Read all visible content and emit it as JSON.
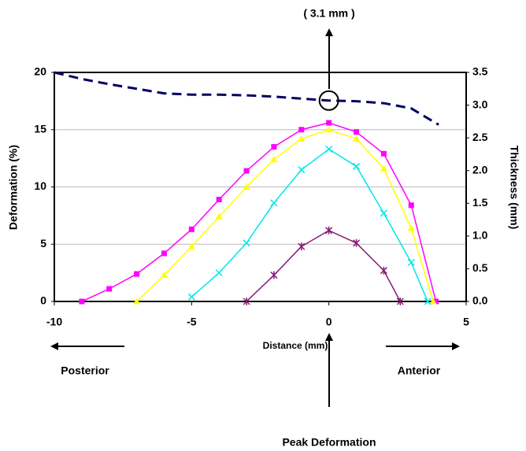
{
  "chart_data": {
    "type": "line",
    "annotations": [
      "( 3.1 mm )",
      "Posterior",
      "Anterior",
      "Peak Deformation"
    ],
    "xlabel": "Distance (mm)",
    "ylabel": "Deformation (%)",
    "y2label": "Thickness (mm)",
    "xlim": [
      -10,
      5
    ],
    "xticks": [
      -10,
      -5,
      0,
      5
    ],
    "ylim": [
      0,
      20
    ],
    "yticks": [
      0,
      5,
      10,
      15,
      20
    ],
    "y2lim": [
      0,
      3.5
    ],
    "y2ticks": [
      {
        "value": 0,
        "label": "0.0"
      },
      0.5,
      {
        "value": 1,
        "label": "1.0"
      },
      1.5,
      {
        "value": 2,
        "label": "2.0"
      },
      2.5,
      {
        "value": 3,
        "label": "3.0"
      },
      3.5
    ],
    "grid": true,
    "series": [
      {
        "color": "#ff00ff",
        "marker": "square",
        "x": [
          -9,
          -8,
          -7,
          -6,
          -5,
          -4,
          -3,
          -2,
          -1,
          0,
          1,
          2,
          3,
          3.9
        ],
        "values": [
          0,
          1.1,
          2.4,
          4.2,
          6.3,
          8.9,
          11.4,
          13.5,
          15.0,
          15.6,
          14.8,
          12.9,
          8.4,
          0
        ]
      },
      {
        "color": "#ffff00",
        "marker": "triangle",
        "x": [
          -7,
          -6,
          -5,
          -4,
          -3,
          -2,
          -1,
          0,
          1,
          2,
          3,
          3.8
        ],
        "values": [
          0,
          2.3,
          4.8,
          7.4,
          10.0,
          12.4,
          14.2,
          15.0,
          14.2,
          11.6,
          6.4,
          0
        ]
      },
      {
        "color": "#00e5ee",
        "marker": "x",
        "x": [
          -5,
          -4,
          -3,
          -2,
          -1,
          0,
          1,
          2,
          3,
          3.6
        ],
        "values": [
          0.4,
          2.5,
          5.1,
          8.6,
          11.5,
          13.3,
          11.8,
          7.7,
          3.4,
          0
        ]
      },
      {
        "color": "#8b1a7a",
        "marker": "star",
        "x": [
          -3,
          -2,
          -1,
          0,
          1,
          2,
          2.6
        ],
        "values": [
          0,
          2.3,
          4.8,
          6.2,
          5.1,
          2.7,
          0
        ]
      },
      {
        "color": "#000066",
        "marker": "none",
        "line_style": "dashed",
        "axis": "y2",
        "x": [
          -10,
          -9,
          -8,
          -7,
          -6,
          -5,
          -4,
          -3,
          -2,
          -1,
          0,
          1,
          2,
          3,
          4
        ],
        "values": [
          3.5,
          3.4,
          3.32,
          3.25,
          3.18,
          3.16,
          3.16,
          3.15,
          3.13,
          3.1,
          3.07,
          3.06,
          3.03,
          2.95,
          2.7
        ]
      }
    ]
  }
}
